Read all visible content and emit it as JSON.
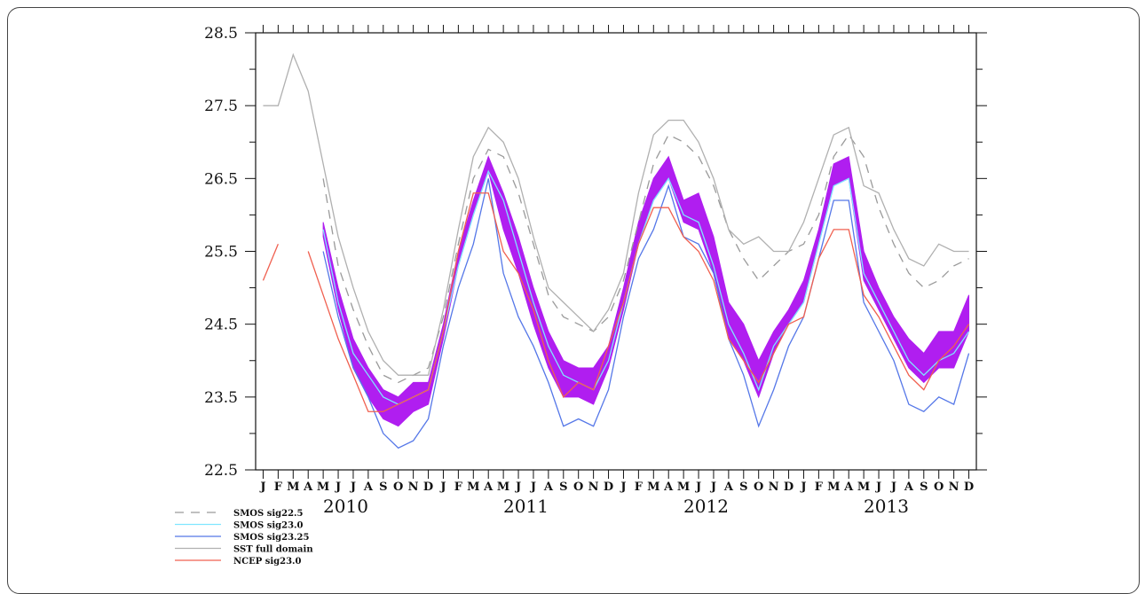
{
  "chart_data": {
    "type": "line",
    "title": "",
    "xlabel": "",
    "ylabel": "",
    "ylim": [
      22.5,
      28.5
    ],
    "y_ticks": [
      "28.5",
      "27.5",
      "26.5",
      "25.5",
      "24.5",
      "23.5",
      "22.5"
    ],
    "month_labels": [
      "J",
      "F",
      "M",
      "A",
      "M",
      "J",
      "J",
      "A",
      "S",
      "O",
      "N",
      "D"
    ],
    "years": [
      "2010",
      "2011",
      "2012",
      "2013"
    ],
    "x_start": "2010-01",
    "grid": false,
    "legend_position": "bottom-left",
    "series": [
      {
        "name": "SMOS sig22.5",
        "color": "#9a9a9a",
        "dash": "10,8",
        "values": [
          null,
          null,
          null,
          null,
          26.5,
          25.3,
          24.7,
          24.2,
          23.8,
          23.7,
          23.8,
          23.9,
          24.6,
          25.6,
          26.5,
          26.9,
          26.8,
          26.3,
          25.6,
          24.9,
          24.6,
          24.5,
          24.4,
          24.6,
          25.1,
          25.9,
          26.7,
          27.1,
          27.0,
          26.8,
          26.4,
          25.8,
          25.4,
          25.1,
          25.3,
          25.5,
          25.6,
          26.0,
          26.8,
          27.1,
          26.8,
          26.1,
          25.6,
          25.2,
          25.0,
          25.1,
          25.3,
          25.4
        ]
      },
      {
        "name": "SMOS sig23.0",
        "color": "#7fe6ff",
        "dash": "",
        "values": [
          null,
          null,
          null,
          null,
          25.8,
          24.8,
          24.1,
          23.8,
          23.5,
          23.4,
          23.5,
          23.6,
          24.4,
          25.3,
          26.0,
          26.6,
          26.2,
          25.5,
          24.8,
          24.2,
          23.8,
          23.7,
          23.6,
          24.0,
          24.8,
          25.6,
          26.2,
          26.5,
          26.0,
          25.9,
          25.3,
          24.5,
          24.1,
          23.6,
          24.2,
          24.5,
          24.8,
          25.6,
          26.4,
          26.5,
          25.2,
          24.8,
          24.4,
          24.0,
          23.8,
          24.0,
          24.1,
          24.4
        ]
      },
      {
        "name": "SMOS sig23.25",
        "color": "#5577e8",
        "dash": "",
        "values": [
          null,
          null,
          null,
          null,
          25.5,
          24.6,
          23.9,
          23.5,
          23.0,
          22.8,
          22.9,
          23.2,
          24.2,
          25.0,
          25.6,
          26.5,
          25.2,
          24.6,
          24.2,
          23.7,
          23.1,
          23.2,
          23.1,
          23.6,
          24.6,
          25.4,
          25.8,
          26.4,
          25.7,
          25.6,
          25.2,
          24.3,
          23.8,
          23.1,
          23.6,
          24.2,
          24.6,
          25.4,
          26.2,
          26.2,
          24.8,
          24.4,
          24.0,
          23.4,
          23.3,
          23.5,
          23.4,
          24.1
        ]
      },
      {
        "name": "SST full domain",
        "color": "#b0b0b0",
        "dash": "",
        "values": [
          27.5,
          27.5,
          28.2,
          27.7,
          26.7,
          25.7,
          25.0,
          24.4,
          24.0,
          23.8,
          23.8,
          23.8,
          24.7,
          25.8,
          26.8,
          27.2,
          27.0,
          26.5,
          25.7,
          25.0,
          24.8,
          24.6,
          24.4,
          24.7,
          25.2,
          26.3,
          27.1,
          27.3,
          27.3,
          27.0,
          26.5,
          25.8,
          25.6,
          25.7,
          25.5,
          25.5,
          25.9,
          26.5,
          27.1,
          27.2,
          26.4,
          26.3,
          25.8,
          25.4,
          25.3,
          25.6,
          25.5,
          25.5
        ]
      },
      {
        "name": "NCEP sig23.0",
        "color": "#f06050",
        "dash": "",
        "values": [
          25.1,
          25.6,
          null,
          25.5,
          24.9,
          24.3,
          23.8,
          23.3,
          23.3,
          23.4,
          23.5,
          23.6,
          24.4,
          25.5,
          26.3,
          26.3,
          25.5,
          25.2,
          24.7,
          24.0,
          23.5,
          23.7,
          23.6,
          24.2,
          24.8,
          25.6,
          26.1,
          26.1,
          25.7,
          25.5,
          25.1,
          24.3,
          24.0,
          23.7,
          24.1,
          24.5,
          24.6,
          25.4,
          25.8,
          25.8,
          24.9,
          24.6,
          24.2,
          23.8,
          23.6,
          24.0,
          24.2,
          24.5
        ]
      }
    ],
    "band": {
      "color": "#b01ef0",
      "low": [
        null,
        null,
        null,
        null,
        25.7,
        24.7,
        23.9,
        23.5,
        23.2,
        23.1,
        23.3,
        23.4,
        24.3,
        25.3,
        26.0,
        26.6,
        25.8,
        25.2,
        24.5,
        23.9,
        23.5,
        23.5,
        23.4,
        23.9,
        24.7,
        25.6,
        26.2,
        26.5,
        25.9,
        25.8,
        25.2,
        24.3,
        24.0,
        23.5,
        24.1,
        24.5,
        24.8,
        25.6,
        26.4,
        26.5,
        25.1,
        24.7,
        24.3,
        23.9,
        23.7,
        23.9,
        23.9,
        24.4
      ],
      "high": [
        null,
        null,
        null,
        null,
        25.9,
        25.0,
        24.3,
        23.9,
        23.6,
        23.5,
        23.7,
        23.7,
        24.5,
        25.5,
        26.2,
        26.8,
        26.3,
        25.7,
        25.0,
        24.4,
        24.0,
        23.9,
        23.9,
        24.2,
        25.0,
        25.9,
        26.5,
        26.8,
        26.2,
        26.3,
        25.7,
        24.8,
        24.5,
        24.0,
        24.4,
        24.7,
        25.1,
        25.8,
        26.7,
        26.8,
        25.5,
        25.0,
        24.6,
        24.3,
        24.1,
        24.4,
        24.4,
        24.9
      ]
    }
  }
}
